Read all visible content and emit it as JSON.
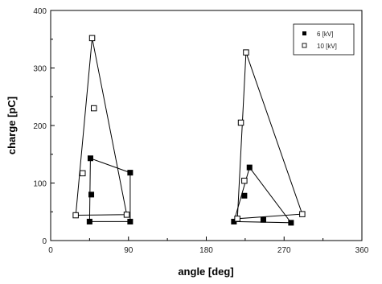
{
  "chart_data": {
    "type": "scatter",
    "xlabel": "angle [deg]",
    "ylabel": "charge [pC]",
    "xlim": [
      0,
      360
    ],
    "ylim": [
      0,
      400
    ],
    "xticks": [
      "0",
      "90",
      "180",
      "270",
      "360"
    ],
    "yticks": [
      "0",
      "100",
      "200",
      "300",
      "400"
    ],
    "legend_position": "top-right",
    "grid": false,
    "series": [
      {
        "name": "6 [kV]",
        "marker": "filled-square",
        "color": "#000000",
        "points": [
          {
            "x": 46,
            "y": 143
          },
          {
            "x": 47,
            "y": 80
          },
          {
            "x": 45,
            "y": 33
          },
          {
            "x": 92,
            "y": 118
          },
          {
            "x": 92,
            "y": 33
          },
          {
            "x": 212,
            "y": 33
          },
          {
            "x": 224,
            "y": 78
          },
          {
            "x": 230,
            "y": 127
          },
          {
            "x": 246,
            "y": 36
          },
          {
            "x": 278,
            "y": 31
          }
        ],
        "envelopes": [
          [
            [
              46,
              143
            ],
            [
              92,
              118
            ],
            [
              92,
              33
            ],
            [
              45,
              33
            ],
            [
              46,
              143
            ]
          ],
          [
            [
              230,
              127
            ],
            [
              278,
              31
            ],
            [
              212,
              33
            ],
            [
              230,
              127
            ]
          ]
        ]
      },
      {
        "name": "10 [kV]",
        "marker": "open-square",
        "color": "#000000",
        "points": [
          {
            "x": 48,
            "y": 352
          },
          {
            "x": 50,
            "y": 230
          },
          {
            "x": 37,
            "y": 117
          },
          {
            "x": 29,
            "y": 44
          },
          {
            "x": 88,
            "y": 45
          },
          {
            "x": 226,
            "y": 327
          },
          {
            "x": 220,
            "y": 205
          },
          {
            "x": 224,
            "y": 104
          },
          {
            "x": 216,
            "y": 38
          },
          {
            "x": 291,
            "y": 46
          }
        ],
        "envelopes": [
          [
            [
              48,
              352
            ],
            [
              88,
              45
            ],
            [
              29,
              44
            ],
            [
              48,
              352
            ]
          ],
          [
            [
              226,
              327
            ],
            [
              291,
              46
            ],
            [
              216,
              38
            ],
            [
              226,
              327
            ]
          ]
        ]
      }
    ]
  }
}
